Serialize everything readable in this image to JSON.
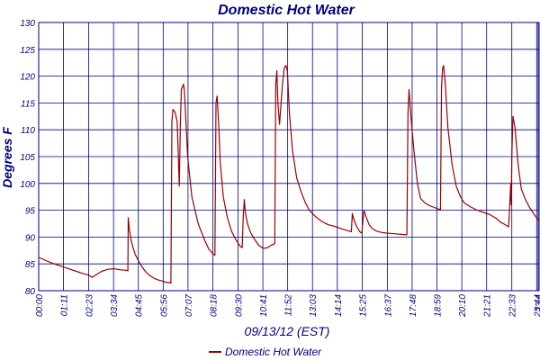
{
  "chart_data": {
    "type": "line",
    "title": "Domestic Hot Water",
    "xlabel": "09/13/12 (EST)",
    "ylabel": "Degrees F",
    "ylim": [
      80,
      130
    ],
    "yticks": [
      80,
      85,
      90,
      95,
      100,
      105,
      110,
      115,
      120,
      125,
      130
    ],
    "xticks": [
      "00:00",
      "01:11",
      "02:23",
      "03:34",
      "04:45",
      "05:56",
      "07:07",
      "08:18",
      "09:30",
      "10:41",
      "11:52",
      "13:03",
      "14:14",
      "15:25",
      "16:37",
      "17:48",
      "18:59",
      "20:10",
      "21:21",
      "22:33",
      "23:44",
      "23:4"
    ],
    "xtick_hours": [
      0,
      1.1833,
      2.3833,
      3.5667,
      4.75,
      5.9333,
      7.1167,
      8.3,
      9.5,
      10.6833,
      11.8667,
      13.05,
      14.2333,
      15.4167,
      16.6167,
      17.8,
      18.9833,
      20.1667,
      21.35,
      22.55,
      23.7333,
      23.8
    ],
    "x_range_hours": [
      0,
      23.85
    ],
    "grid": true,
    "legend_position": "bottom-center",
    "colors": {
      "series": "#990000",
      "grid": "#000080",
      "text": "#000080"
    },
    "series": [
      {
        "name": "Domestic Hot Water",
        "points": [
          [
            0,
            86.2
          ],
          [
            0.3,
            85.7
          ],
          [
            0.6,
            85.2
          ],
          [
            0.9,
            84.8
          ],
          [
            1.2,
            84.4
          ],
          [
            1.5,
            84.0
          ],
          [
            1.8,
            83.6
          ],
          [
            2.1,
            83.2
          ],
          [
            2.4,
            82.9
          ],
          [
            2.55,
            82.5
          ],
          [
            2.75,
            83.0
          ],
          [
            3.0,
            83.6
          ],
          [
            3.3,
            84.0
          ],
          [
            3.6,
            84.1
          ],
          [
            3.9,
            83.9
          ],
          [
            4.2,
            83.8
          ],
          [
            4.25,
            83.7
          ],
          [
            4.27,
            93.6
          ],
          [
            4.32,
            91.5
          ],
          [
            4.4,
            89.5
          ],
          [
            4.5,
            88.0
          ],
          [
            4.6,
            86.8
          ],
          [
            4.75,
            85.6
          ],
          [
            4.9,
            84.6
          ],
          [
            5.1,
            83.5
          ],
          [
            5.3,
            82.8
          ],
          [
            5.5,
            82.3
          ],
          [
            5.7,
            82.0
          ],
          [
            5.9,
            81.8
          ],
          [
            6.05,
            81.6
          ],
          [
            6.25,
            81.5
          ],
          [
            6.3,
            81.4
          ],
          [
            6.35,
            111.5
          ],
          [
            6.4,
            113.8
          ],
          [
            6.5,
            113.3
          ],
          [
            6.6,
            111.5
          ],
          [
            6.7,
            99.5
          ],
          [
            6.75,
            111
          ],
          [
            6.8,
            117.5
          ],
          [
            6.9,
            118.5
          ],
          [
            6.95,
            117
          ],
          [
            7.1,
            105
          ],
          [
            7.3,
            97.5
          ],
          [
            7.6,
            92.5
          ],
          [
            7.9,
            89.5
          ],
          [
            8.1,
            87.8
          ],
          [
            8.3,
            86.9
          ],
          [
            8.4,
            86.6
          ],
          [
            8.45,
            115
          ],
          [
            8.5,
            116.3
          ],
          [
            8.58,
            111
          ],
          [
            8.65,
            104
          ],
          [
            8.8,
            97.5
          ],
          [
            9.0,
            93.5
          ],
          [
            9.2,
            91.0
          ],
          [
            9.4,
            89.5
          ],
          [
            9.6,
            88.3
          ],
          [
            9.7,
            88.0
          ],
          [
            9.75,
            94
          ],
          [
            9.8,
            97.0
          ],
          [
            9.85,
            94.5
          ],
          [
            9.95,
            92.5
          ],
          [
            10.1,
            90.8
          ],
          [
            10.3,
            89.5
          ],
          [
            10.5,
            88.4
          ],
          [
            10.7,
            87.9
          ],
          [
            10.9,
            88.0
          ],
          [
            11.1,
            88.5
          ],
          [
            11.25,
            88.8
          ],
          [
            11.3,
            118.5
          ],
          [
            11.35,
            121
          ],
          [
            11.4,
            115
          ],
          [
            11.48,
            111
          ],
          [
            11.55,
            115
          ],
          [
            11.62,
            118.5
          ],
          [
            11.7,
            121.5
          ],
          [
            11.78,
            122
          ],
          [
            11.85,
            121
          ],
          [
            11.95,
            113
          ],
          [
            12.1,
            106
          ],
          [
            12.3,
            101
          ],
          [
            12.5,
            98.5
          ],
          [
            12.7,
            96.5
          ],
          [
            12.9,
            95.0
          ],
          [
            13.2,
            93.8
          ],
          [
            13.5,
            92.9
          ],
          [
            13.8,
            92.3
          ],
          [
            14.1,
            92.0
          ],
          [
            14.4,
            91.6
          ],
          [
            14.7,
            91.2
          ],
          [
            14.9,
            91.0
          ],
          [
            14.95,
            94.4
          ],
          [
            15.0,
            93.5
          ],
          [
            15.15,
            92.0
          ],
          [
            15.3,
            91.0
          ],
          [
            15.4,
            90.7
          ],
          [
            15.5,
            95.0
          ],
          [
            15.6,
            93.8
          ],
          [
            15.75,
            92.3
          ],
          [
            15.9,
            91.6
          ],
          [
            16.1,
            91.1
          ],
          [
            16.4,
            90.8
          ],
          [
            16.7,
            90.7
          ],
          [
            17.0,
            90.6
          ],
          [
            17.3,
            90.5
          ],
          [
            17.55,
            90.4
          ],
          [
            17.6,
            113
          ],
          [
            17.65,
            117.5
          ],
          [
            17.75,
            112
          ],
          [
            17.9,
            105.5
          ],
          [
            18.05,
            100
          ],
          [
            18.2,
            97.2
          ],
          [
            18.4,
            96.4
          ],
          [
            18.6,
            95.9
          ],
          [
            18.8,
            95.6
          ],
          [
            19.0,
            95.3
          ],
          [
            19.15,
            95.1
          ],
          [
            19.2,
            118
          ],
          [
            19.25,
            121.5
          ],
          [
            19.3,
            122
          ],
          [
            19.38,
            118.5
          ],
          [
            19.5,
            110.5
          ],
          [
            19.7,
            103.5
          ],
          [
            19.9,
            99.5
          ],
          [
            20.1,
            97.5
          ],
          [
            20.3,
            96.3
          ],
          [
            20.6,
            95.6
          ],
          [
            20.9,
            95.0
          ],
          [
            21.2,
            94.6
          ],
          [
            21.5,
            94.2
          ],
          [
            21.8,
            93.5
          ],
          [
            22.0,
            92.8
          ],
          [
            22.2,
            92.4
          ],
          [
            22.4,
            91.9
          ],
          [
            22.5,
            100
          ],
          [
            22.52,
            96
          ],
          [
            22.55,
            105
          ],
          [
            22.6,
            112.5
          ],
          [
            22.7,
            110.5
          ],
          [
            22.85,
            103.5
          ],
          [
            23.0,
            99
          ],
          [
            23.2,
            97
          ],
          [
            23.4,
            95.5
          ],
          [
            23.6,
            94.3
          ],
          [
            23.8,
            93.2
          ],
          [
            23.85,
            93.0
          ]
        ]
      }
    ]
  }
}
